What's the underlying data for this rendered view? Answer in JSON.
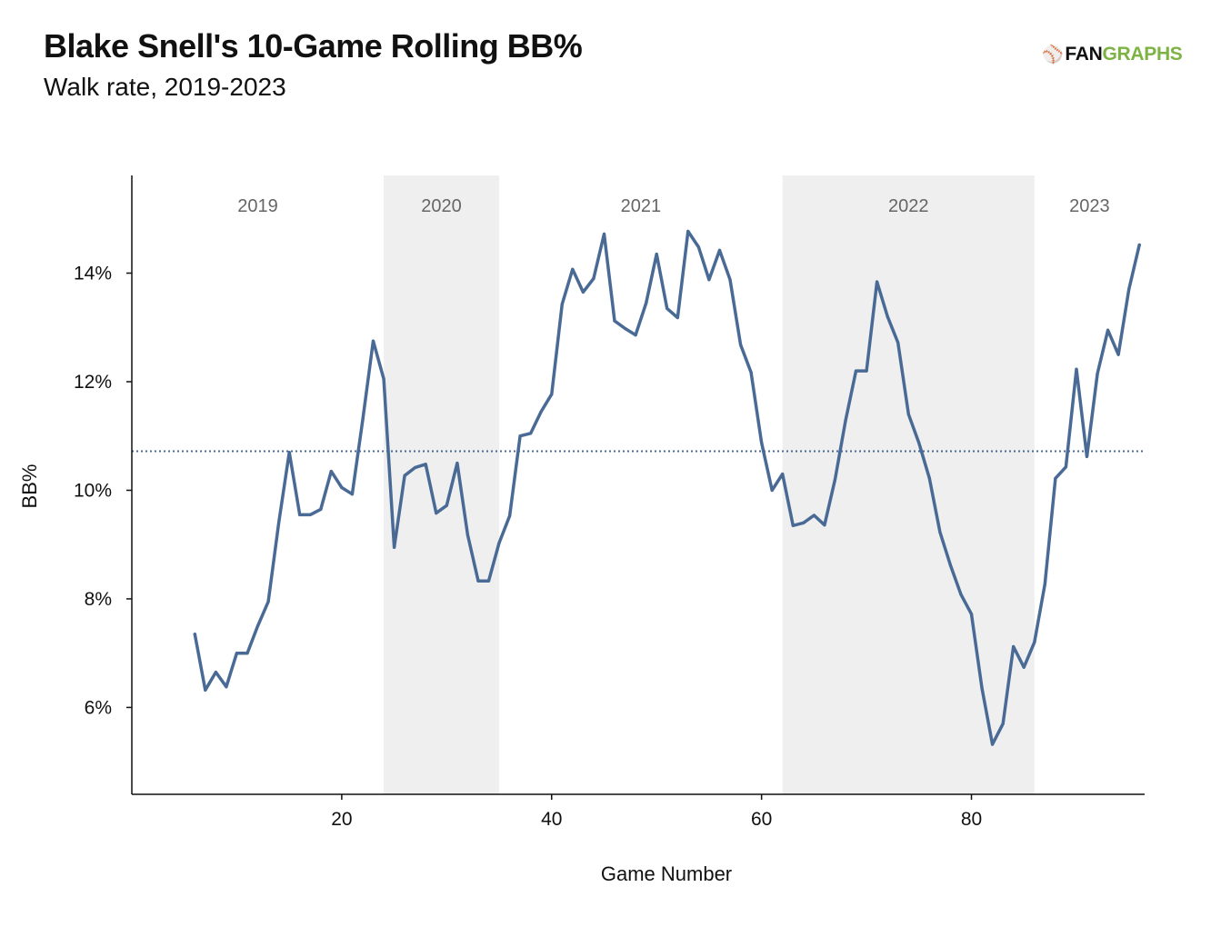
{
  "logo": {
    "mark": "⚾",
    "part1": "FAN",
    "part2": "GRAPHS",
    "accent": "#7db343"
  },
  "chart_data": {
    "type": "line",
    "title": "Blake Snell's 10-Game Rolling BB%",
    "subtitle": "Walk rate, 2019-2023",
    "xlabel": "Game Number",
    "ylabel": "BB%",
    "xlim": [
      0,
      96.5
    ],
    "ylim": [
      4.4,
      15.8
    ],
    "xticks": [
      20,
      40,
      60,
      80
    ],
    "yticks": [
      6,
      8,
      10,
      12,
      14
    ],
    "ytick_format": "{v}%",
    "line_color": "#4a6a96",
    "reference_line": {
      "value": 10.72,
      "style": "dotted",
      "color": "#4a6a96"
    },
    "seasons": [
      {
        "label": "2019",
        "start": 0,
        "end": 24,
        "shaded": false
      },
      {
        "label": "2020",
        "start": 24,
        "end": 35,
        "shaded": true
      },
      {
        "label": "2021",
        "start": 35,
        "end": 62,
        "shaded": false
      },
      {
        "label": "2022",
        "start": 62,
        "end": 86,
        "shaded": true
      },
      {
        "label": "2023",
        "start": 86,
        "end": 96.5,
        "shaded": false
      }
    ],
    "series": [
      {
        "x": [
          6,
          7,
          8,
          9,
          10,
          11,
          12,
          13,
          14,
          15,
          16,
          17,
          18,
          19,
          20,
          21,
          22,
          23,
          24,
          25,
          26,
          27,
          28,
          29,
          30,
          31,
          32,
          33,
          34,
          35,
          36,
          37,
          38,
          39,
          40,
          41,
          42,
          43,
          44,
          45,
          46,
          47,
          48,
          49,
          50,
          51,
          52,
          53,
          54,
          55,
          56,
          57,
          58,
          59,
          60,
          61,
          62,
          63,
          64,
          65,
          66,
          67,
          68,
          69,
          70,
          71,
          72,
          73,
          74,
          75,
          76,
          77,
          78,
          79,
          80,
          81,
          82,
          83,
          84,
          85,
          86,
          87,
          88,
          89,
          90,
          91,
          92,
          93,
          94,
          95,
          96
        ],
        "values": [
          7.35,
          6.32,
          6.65,
          6.38,
          7.0,
          7.0,
          7.5,
          7.95,
          9.4,
          10.7,
          9.55,
          9.55,
          9.65,
          10.35,
          10.05,
          9.93,
          11.3,
          12.75,
          12.05,
          8.95,
          10.27,
          10.42,
          10.48,
          9.58,
          9.72,
          10.5,
          9.18,
          8.33,
          8.33,
          9.03,
          9.53,
          11.0,
          11.05,
          11.45,
          11.77,
          13.43,
          14.07,
          13.65,
          13.9,
          14.72,
          13.12,
          12.98,
          12.86,
          13.45,
          14.35,
          13.35,
          13.18,
          14.77,
          14.48,
          13.88,
          14.42,
          13.88,
          12.68,
          12.17,
          10.88,
          10.0,
          10.3,
          9.35,
          9.4,
          9.54,
          9.36,
          10.2,
          11.28,
          12.2,
          12.2,
          13.84,
          13.2,
          12.72,
          11.4,
          10.87,
          10.22,
          9.23,
          8.62,
          8.08,
          7.72,
          6.35,
          5.32,
          5.7,
          7.12,
          6.74,
          7.2,
          8.27,
          10.22,
          10.43,
          12.23,
          10.62,
          12.15,
          12.95,
          12.5,
          13.7,
          14.52
        ]
      }
    ]
  }
}
